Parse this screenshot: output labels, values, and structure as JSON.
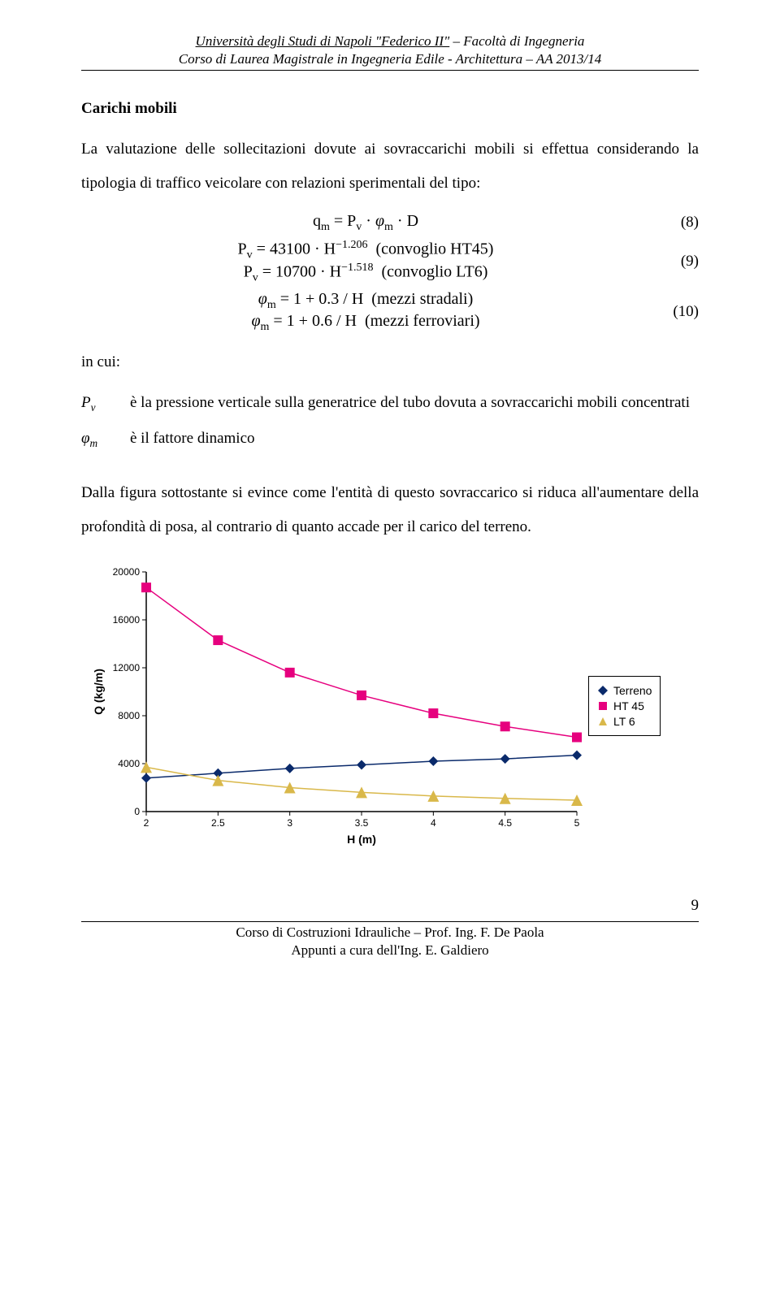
{
  "header": {
    "line1_part1": "Università degli Studi di Napoli \"Federico II\"",
    "line1_part2": " – Facoltà di Ingegneria",
    "line2": "Corso di Laurea Magistrale in Ingegneria Edile - Architettura – AA 2013/14"
  },
  "section_title": "Carichi mobili",
  "para1": "La valutazione delle sollecitazioni dovute ai sovraccarichi mobili si effettua considerando la tipologia di traffico veicolare con relazioni sperimentali del tipo:",
  "equations": {
    "eq8": {
      "text": "qₘ = Pᵥ · φₘ · D",
      "num": "(8)"
    },
    "eq9a": "Pᵥ = 43100 · H⁻¹·²⁰⁶  (convoglio HT45)",
    "eq9b": "Pᵥ = 10700 · H⁻¹·⁵¹⁸  (convoglio LT6)",
    "eq9_num": "(9)",
    "eq10a": "φₘ = 1 + 0.3 / H  (mezzi stradali)",
    "eq10b": "φₘ = 1 + 0.6 / H  (mezzi ferroviari)",
    "eq10_num": "(10)"
  },
  "incui": "in cui:",
  "defs": {
    "pv_sym": "P",
    "pv_sub": "v",
    "pv_text": "è la pressione verticale sulla generatrice del tubo dovuta a sovraccarichi mobili concentrati",
    "phi_sym": "φ",
    "phi_sub": "m",
    "phi_text": "è il fattore dinamico"
  },
  "para2": "Dalla figura sottostante si evince come l'entità di questo sovraccarico si riduca all'aumentare della profondità di posa, al contrario di quanto accade per il carico del terreno.",
  "chart": {
    "type": "scatter-line",
    "background_color": "#ffffff",
    "grid": false,
    "xlabel": "H (m)",
    "ylabel": "Q (kg/m)",
    "label_fontsize": 14,
    "label_fontweight": "bold",
    "xlim": [
      2,
      5
    ],
    "ylim": [
      0,
      20000
    ],
    "xticks": [
      2,
      2.5,
      3,
      3.5,
      4,
      4.5,
      5
    ],
    "yticks": [
      0,
      4000,
      8000,
      12000,
      16000,
      20000
    ],
    "tick_fontsize": 12,
    "axis_color": "#000000",
    "series": [
      {
        "name": "Terreno",
        "marker": "diamond",
        "color": "#0a2a6b",
        "line_color": "#0a2a6b",
        "size": 6,
        "x": [
          2,
          2.5,
          3,
          3.5,
          4,
          4.5,
          5
        ],
        "y": [
          2800,
          3200,
          3600,
          3900,
          4200,
          4400,
          4700
        ]
      },
      {
        "name": "HT 45",
        "marker": "square",
        "color": "#e6007e",
        "line_color": "#e6007e",
        "size": 6,
        "x": [
          2,
          2.5,
          3,
          3.5,
          4,
          4.5,
          5
        ],
        "y": [
          18700,
          14300,
          11600,
          9700,
          8200,
          7100,
          6200
        ]
      },
      {
        "name": "LT 6",
        "marker": "triangle",
        "color": "#d9b84a",
        "line_color": "#d9b84a",
        "size": 7,
        "x": [
          2,
          2.5,
          3,
          3.5,
          4,
          4.5,
          5
        ],
        "y": [
          3700,
          2600,
          2000,
          1600,
          1300,
          1100,
          950
        ]
      }
    ],
    "legend": {
      "items": [
        "Terreno",
        "HT 45",
        "LT 6"
      ],
      "border_color": "#000000",
      "font": "Arial",
      "fontsize": 14
    }
  },
  "footer": {
    "line1": "Corso di Costruzioni Idrauliche – Prof. Ing. F. De Paola",
    "line2": "Appunti a cura dell'Ing. E. Galdiero",
    "page": "9"
  }
}
